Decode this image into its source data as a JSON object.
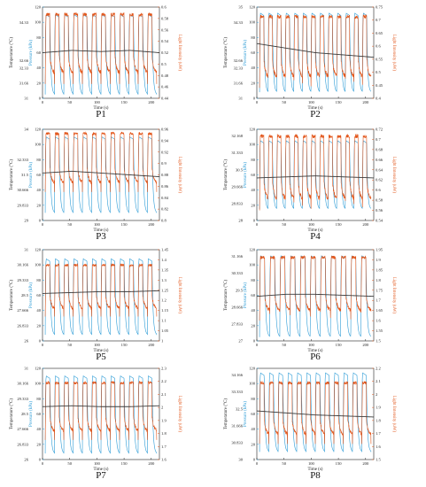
{
  "colors": {
    "pressure": "#2b9bd6",
    "light": "#e2561b",
    "temperature": "#3a3a3a",
    "axis": "#222222"
  },
  "xlabel": "Time (s)",
  "ylabel_temperature": "Temperature (°C)",
  "ylabel_pressure": "Pressure (kPa)",
  "ylabel_light": "Light Intensity (uW)",
  "chart_data": [
    {
      "name": "P1",
      "type": "line",
      "xlim": [
        0,
        215
      ],
      "x_ticks": [
        "0",
        "50",
        "100",
        "150",
        "200"
      ],
      "temp_ticks": [
        "34.33",
        "32.66",
        "32.33",
        "31.66",
        "31"
      ],
      "temp_range": [
        31,
        35
      ],
      "temp_values": [
        33.0,
        33.1,
        33.05,
        33.1,
        33.0
      ],
      "pressure_ticks": [
        "0",
        "20",
        "40",
        "60",
        "80",
        "100",
        "120"
      ],
      "pressure_range": [
        0,
        120
      ],
      "pressure_cycles": 12,
      "pressure_low": 5,
      "pressure_high": 110,
      "light_ticks": [
        "0.44",
        "0.46",
        "0.48",
        "0.5",
        "0.52",
        "0.54",
        "0.56",
        "0.58",
        "0.6"
      ],
      "light_range": [
        0.44,
        0.6
      ],
      "light_low": 0.465,
      "light_high": 0.59
    },
    {
      "name": "P2",
      "type": "line",
      "xlim": [
        0,
        215
      ],
      "x_ticks": [
        "0",
        "50",
        "100",
        "150",
        "200"
      ],
      "temp_ticks": [
        "35",
        "34.33",
        "32.66",
        "32.33",
        "31.66",
        "31"
      ],
      "temp_range": [
        31,
        35
      ],
      "temp_values": [
        33.4,
        33.2,
        33.0,
        32.9,
        32.8
      ],
      "pressure_ticks": [
        "0",
        "20",
        "40",
        "60",
        "80",
        "100",
        "120"
      ],
      "pressure_range": [
        0,
        120
      ],
      "pressure_cycles": 13,
      "pressure_low": 8,
      "pressure_high": 112,
      "light_ticks": [
        "0.4",
        "0.45",
        "0.5",
        "0.55",
        "0.6",
        "0.65",
        "0.7",
        "0.75"
      ],
      "light_range": [
        0.4,
        0.75
      ],
      "light_low": 0.44,
      "light_high": 0.72
    },
    {
      "name": "P3",
      "type": "line",
      "xlim": [
        0,
        215
      ],
      "x_ticks": [
        "0",
        "50",
        "100",
        "150",
        "200"
      ],
      "temp_ticks": [
        "34",
        "32.333",
        "31.5",
        "30.666",
        "29.833",
        "29"
      ],
      "temp_range": [
        29,
        34
      ],
      "temp_values": [
        31.6,
        31.7,
        31.6,
        31.5,
        31.4
      ],
      "pressure_ticks": [
        "0",
        "20",
        "40",
        "60",
        "80",
        "100",
        "120"
      ],
      "pressure_range": [
        0,
        120
      ],
      "pressure_cycles": 12,
      "pressure_low": 10,
      "pressure_high": 110,
      "light_ticks": [
        "0.8",
        "0.82",
        "0.84",
        "0.86",
        "0.88",
        "0.9",
        "0.92",
        "0.94",
        "0.96"
      ],
      "light_range": [
        0.8,
        0.96
      ],
      "light_low": 0.85,
      "light_high": 0.955
    },
    {
      "name": "P4",
      "type": "line",
      "xlim": [
        0,
        215
      ],
      "x_ticks": [
        "0",
        "50",
        "100",
        "150",
        "200"
      ],
      "temp_ticks": [
        "32.168",
        "31.333",
        "30.5",
        "29.666",
        "28.833",
        "28"
      ],
      "temp_range": [
        28,
        32.5
      ],
      "temp_values": [
        30.1,
        30.15,
        30.2,
        30.15,
        30.1
      ],
      "pressure_ticks": [
        "0",
        "20",
        "40",
        "60",
        "80",
        "100",
        "120"
      ],
      "pressure_range": [
        0,
        120
      ],
      "pressure_cycles": 13,
      "pressure_low": 15,
      "pressure_high": 105,
      "light_ticks": [
        "0.54",
        "0.56",
        "0.58",
        "0.6",
        "0.62",
        "0.64",
        "0.66",
        "0.68",
        "0.7",
        "0.72"
      ],
      "light_range": [
        0.54,
        0.72
      ],
      "light_low": 0.56,
      "light_high": 0.71
    },
    {
      "name": "P5",
      "type": "line",
      "xlim": [
        0,
        215
      ],
      "x_ticks": [
        "0",
        "50",
        "100",
        "150",
        "200"
      ],
      "temp_ticks": [
        "31",
        "30.166",
        "29.333",
        "28.5",
        "27.666",
        "26.833",
        "26"
      ],
      "temp_range": [
        26,
        31
      ],
      "temp_values": [
        28.6,
        28.65,
        28.7,
        28.7,
        28.75
      ],
      "pressure_ticks": [
        "0",
        "20",
        "40",
        "60",
        "80",
        "100",
        "120"
      ],
      "pressure_range": [
        0,
        120
      ],
      "pressure_cycles": 12,
      "pressure_low": 8,
      "pressure_high": 108,
      "light_ticks": [
        "1",
        "1.05",
        "1.1",
        "1.15",
        "1.2",
        "1.25",
        "1.3",
        "1.35",
        "1.4",
        "1.45"
      ],
      "light_range": [
        1,
        1.45
      ],
      "light_low": 1.12,
      "light_high": 1.38
    },
    {
      "name": "P6",
      "type": "line",
      "xlim": [
        0,
        215
      ],
      "x_ticks": [
        "0",
        "50",
        "100",
        "150",
        "200"
      ],
      "temp_ticks": [
        "31.166",
        "30.333",
        "29.5",
        "28.666",
        "27.833",
        "27"
      ],
      "temp_range": [
        27,
        31.5
      ],
      "temp_values": [
        29.2,
        29.3,
        29.3,
        29.25,
        29.2
      ],
      "pressure_ticks": [
        "0",
        "20",
        "40",
        "60",
        "80",
        "100",
        "120"
      ],
      "pressure_range": [
        0,
        120
      ],
      "pressure_cycles": 11,
      "pressure_low": 5,
      "pressure_high": 112,
      "light_ticks": [
        "1.5",
        "1.55",
        "1.6",
        "1.65",
        "1.7",
        "1.75",
        "1.8",
        "1.85",
        "1.9",
        "1.95"
      ],
      "light_range": [
        1.5,
        1.95
      ],
      "light_low": 1.6,
      "light_high": 1.92
    },
    {
      "name": "P7",
      "type": "line",
      "xlim": [
        0,
        215
      ],
      "x_ticks": [
        "0",
        "50",
        "100",
        "150",
        "200"
      ],
      "temp_ticks": [
        "31",
        "30.166",
        "29.333",
        "28.5",
        "27.666",
        "26.833",
        "26"
      ],
      "temp_range": [
        26,
        31
      ],
      "temp_values": [
        28.9,
        28.95,
        28.9,
        28.9,
        28.95
      ],
      "pressure_ticks": [
        "0",
        "20",
        "40",
        "60",
        "80",
        "100",
        "120"
      ],
      "pressure_range": [
        0,
        120
      ],
      "pressure_cycles": 12,
      "pressure_low": 8,
      "pressure_high": 110,
      "light_ticks": [
        "1.6",
        "1.7",
        "1.8",
        "1.9",
        "2",
        "2.1",
        "2.2",
        "2.3"
      ],
      "light_range": [
        1.6,
        2.3
      ],
      "light_low": 1.75,
      "light_high": 2.2
    },
    {
      "name": "P8",
      "type": "line",
      "xlim": [
        0,
        215
      ],
      "x_ticks": [
        "0",
        "50",
        "100",
        "150",
        "200"
      ],
      "temp_ticks": [
        "34.166",
        "33.333",
        "32.5",
        "31.666",
        "30.833",
        "30"
      ],
      "temp_range": [
        30,
        34.5
      ],
      "temp_values": [
        32.4,
        32.3,
        32.2,
        32.15,
        32.1
      ],
      "pressure_ticks": [
        "0",
        "20",
        "40",
        "60",
        "80",
        "100",
        "120"
      ],
      "pressure_range": [
        0,
        120
      ],
      "pressure_cycles": 12,
      "pressure_low": 10,
      "pressure_high": 114,
      "light_ticks": [
        "1.5",
        "1.6",
        "1.7",
        "1.8",
        "1.9",
        "2",
        "2.1",
        "2.2"
      ],
      "light_range": [
        1.5,
        2.2
      ],
      "light_low": 1.62,
      "light_high": 2.1
    }
  ]
}
